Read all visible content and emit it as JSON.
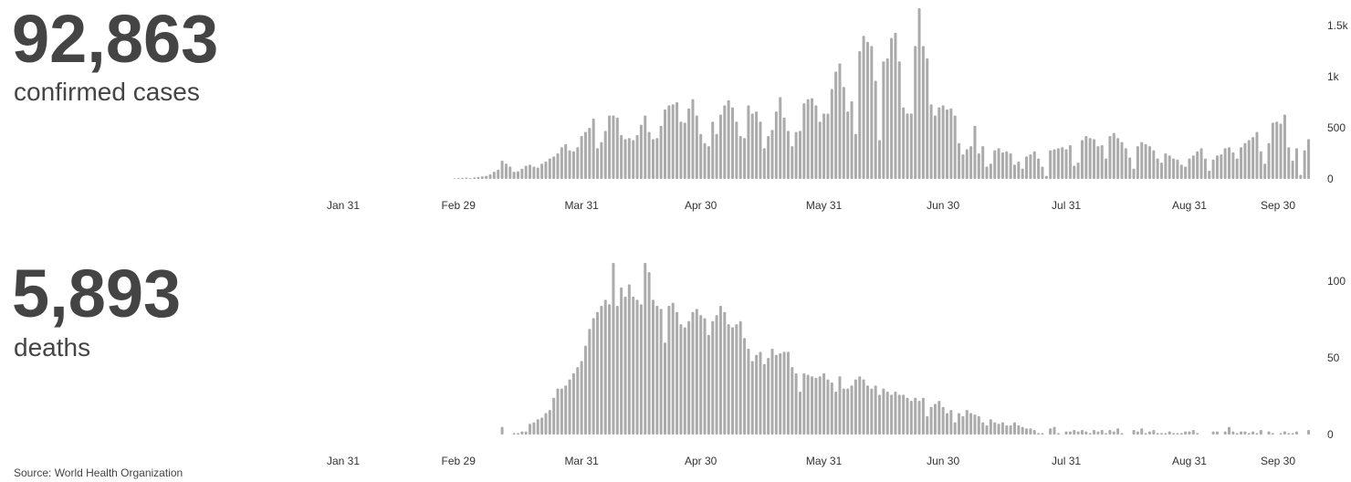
{
  "source": "Source: World Health Organization",
  "chart_data": [
    {
      "type": "bar",
      "headline": "92,863",
      "label": "confirmed cases",
      "color": "#ababab",
      "categories": [
        "Jan 31",
        null,
        null,
        null,
        null,
        null,
        null,
        null,
        null,
        null,
        null,
        null,
        null,
        null,
        null,
        null,
        null,
        null,
        null,
        null,
        null,
        null,
        null,
        null,
        null,
        null,
        null,
        null,
        null,
        "Feb 29",
        null,
        null,
        null,
        null,
        null,
        null,
        null,
        null,
        null,
        null,
        null,
        null,
        null,
        null,
        null,
        null,
        null,
        null,
        null,
        null,
        null,
        null,
        null,
        null,
        null,
        null,
        null,
        null,
        null,
        null,
        "Mar 31",
        null,
        null,
        null,
        null,
        null,
        null,
        null,
        null,
        null,
        null,
        null,
        null,
        null,
        null,
        null,
        null,
        null,
        null,
        null,
        null,
        null,
        null,
        null,
        null,
        null,
        null,
        null,
        null,
        null,
        "Apr 30",
        null,
        null,
        null,
        null,
        null,
        null,
        null,
        null,
        null,
        null,
        null,
        null,
        null,
        null,
        null,
        null,
        null,
        null,
        null,
        null,
        null,
        null,
        null,
        null,
        null,
        null,
        null,
        null,
        null,
        null,
        "May 31",
        null,
        null,
        null,
        null,
        null,
        null,
        null,
        null,
        null,
        null,
        null,
        null,
        null,
        null,
        null,
        null,
        null,
        null,
        null,
        null,
        null,
        null,
        null,
        null,
        null,
        null,
        null,
        null,
        null,
        "Jun 30",
        null,
        null,
        null,
        null,
        null,
        null,
        null,
        null,
        null,
        null,
        null,
        null,
        null,
        null,
        null,
        null,
        null,
        null,
        null,
        null,
        null,
        null,
        null,
        null,
        null,
        null,
        null,
        null,
        null,
        null,
        "Jul 31",
        null,
        null,
        null,
        null,
        null,
        null,
        null,
        null,
        null,
        null,
        null,
        null,
        null,
        null,
        null,
        null,
        null,
        null,
        null,
        null,
        null,
        null,
        null,
        null,
        null,
        null,
        null,
        null,
        null,
        null,
        "Aug 31",
        null,
        null,
        null,
        null,
        null,
        null,
        null,
        null,
        null,
        null,
        null,
        null,
        null,
        null,
        null,
        null,
        null,
        null,
        null,
        null,
        null,
        null,
        null,
        null,
        null,
        null,
        null,
        null,
        null,
        "Sep 30"
      ],
      "values": [
        0,
        0,
        0,
        0,
        0,
        0,
        0,
        0,
        0,
        0,
        0,
        0,
        0,
        0,
        0,
        0,
        0,
        0,
        0,
        0,
        0,
        0,
        0,
        0,
        0,
        0,
        0,
        0,
        5,
        8,
        10,
        12,
        8,
        15,
        20,
        25,
        30,
        45,
        70,
        90,
        180,
        150,
        120,
        70,
        75,
        100,
        130,
        140,
        120,
        110,
        150,
        170,
        200,
        220,
        250,
        310,
        340,
        280,
        270,
        310,
        420,
        460,
        500,
        590,
        300,
        360,
        470,
        620,
        620,
        600,
        430,
        390,
        400,
        380,
        430,
        530,
        620,
        460,
        390,
        400,
        520,
        680,
        720,
        730,
        750,
        560,
        550,
        690,
        780,
        620,
        440,
        350,
        320,
        560,
        440,
        630,
        720,
        770,
        700,
        560,
        420,
        400,
        720,
        640,
        660,
        560,
        300,
        420,
        480,
        660,
        800,
        600,
        470,
        320,
        460,
        470,
        740,
        780,
        790,
        720,
        560,
        640,
        640,
        880,
        1050,
        1130,
        900,
        660,
        760,
        440,
        1250,
        1400,
        1340,
        1300,
        960,
        380,
        1150,
        1180,
        1380,
        1430,
        1150,
        700,
        640,
        640,
        1300,
        1670,
        1300,
        1180,
        730,
        620,
        700,
        720,
        680,
        690,
        620,
        350,
        240,
        290,
        320,
        520,
        250,
        320,
        120,
        150,
        280,
        300,
        260,
        270,
        250,
        140,
        170,
        100,
        220,
        240,
        270,
        200,
        120,
        30,
        280,
        290,
        300,
        310,
        290,
        330,
        130,
        160,
        380,
        420,
        400,
        390,
        320,
        330,
        200,
        420,
        450,
        400,
        360,
        300,
        210,
        100,
        320,
        360,
        340,
        320,
        280,
        200,
        160,
        250,
        230,
        200,
        190,
        140,
        120,
        200,
        230,
        270,
        300,
        200,
        80,
        190,
        230,
        240,
        300,
        310,
        260,
        200,
        310,
        350,
        380,
        410,
        460,
        270,
        150,
        350,
        550,
        560,
        540,
        630,
        310,
        180,
        300,
        40,
        280,
        390
      ],
      "ylim": [
        0,
        1700
      ],
      "yticks": [
        0,
        500,
        {
          "value": 1000,
          "label": "1k"
        },
        {
          "value": 1500,
          "label": "1.5k"
        }
      ]
    },
    {
      "type": "bar",
      "headline": "5,893",
      "label": "deaths",
      "color": "#ababab",
      "categories": [
        "Jan 31",
        null,
        null,
        null,
        null,
        null,
        null,
        null,
        null,
        null,
        null,
        null,
        null,
        null,
        null,
        null,
        null,
        null,
        null,
        null,
        null,
        null,
        null,
        null,
        null,
        null,
        null,
        null,
        null,
        "Feb 29",
        null,
        null,
        null,
        null,
        null,
        null,
        null,
        null,
        null,
        null,
        null,
        null,
        null,
        null,
        null,
        null,
        null,
        null,
        null,
        null,
        null,
        null,
        null,
        null,
        null,
        null,
        null,
        null,
        null,
        null,
        "Mar 31",
        null,
        null,
        null,
        null,
        null,
        null,
        null,
        null,
        null,
        null,
        null,
        null,
        null,
        null,
        null,
        null,
        null,
        null,
        null,
        null,
        null,
        null,
        null,
        null,
        null,
        null,
        null,
        null,
        null,
        "Apr 30",
        null,
        null,
        null,
        null,
        null,
        null,
        null,
        null,
        null,
        null,
        null,
        null,
        null,
        null,
        null,
        null,
        null,
        null,
        null,
        null,
        null,
        null,
        null,
        null,
        null,
        null,
        null,
        null,
        null,
        null,
        "May 31",
        null,
        null,
        null,
        null,
        null,
        null,
        null,
        null,
        null,
        null,
        null,
        null,
        null,
        null,
        null,
        null,
        null,
        null,
        null,
        null,
        null,
        null,
        null,
        null,
        null,
        null,
        null,
        null,
        null,
        "Jun 30",
        null,
        null,
        null,
        null,
        null,
        null,
        null,
        null,
        null,
        null,
        null,
        null,
        null,
        null,
        null,
        null,
        null,
        null,
        null,
        null,
        null,
        null,
        null,
        null,
        null,
        null,
        null,
        null,
        null,
        null,
        "Jul 31",
        null,
        null,
        null,
        null,
        null,
        null,
        null,
        null,
        null,
        null,
        null,
        null,
        null,
        null,
        null,
        null,
        null,
        null,
        null,
        null,
        null,
        null,
        null,
        null,
        null,
        null,
        null,
        null,
        null,
        null,
        "Aug 31",
        null,
        null,
        null,
        null,
        null,
        null,
        null,
        null,
        null,
        null,
        null,
        null,
        null,
        null,
        null,
        null,
        null,
        null,
        null,
        null,
        null,
        null,
        null,
        null,
        null,
        null,
        null,
        null,
        null,
        "Sep 30"
      ],
      "values": [
        0,
        0,
        0,
        0,
        0,
        0,
        0,
        0,
        0,
        0,
        0,
        0,
        0,
        0,
        0,
        0,
        0,
        0,
        0,
        0,
        0,
        0,
        0,
        0,
        0,
        0,
        0,
        0,
        0,
        0,
        0,
        0,
        0,
        0,
        0,
        0,
        0,
        0,
        0,
        0,
        5,
        0,
        0,
        1,
        1,
        2,
        2,
        7,
        8,
        10,
        11,
        14,
        16,
        24,
        30,
        30,
        32,
        36,
        40,
        44,
        48,
        58,
        69,
        76,
        80,
        84,
        88,
        85,
        112,
        84,
        96,
        90,
        98,
        90,
        88,
        85,
        112,
        106,
        88,
        84,
        82,
        60,
        84,
        86,
        80,
        72,
        70,
        74,
        80,
        82,
        78,
        76,
        65,
        74,
        78,
        84,
        80,
        72,
        70,
        72,
        74,
        63,
        56,
        48,
        52,
        54,
        46,
        50,
        56,
        52,
        53,
        54,
        54,
        44,
        40,
        28,
        40,
        39,
        38,
        37,
        38,
        40,
        36,
        34,
        28,
        38,
        30,
        30,
        32,
        36,
        38,
        36,
        32,
        30,
        32,
        26,
        30,
        28,
        26,
        28,
        26,
        26,
        24,
        22,
        24,
        22,
        24,
        12,
        18,
        20,
        22,
        18,
        14,
        16,
        8,
        14,
        12,
        16,
        14,
        13,
        12,
        8,
        6,
        10,
        8,
        7,
        8,
        6,
        6,
        8,
        6,
        5,
        4,
        4,
        3,
        1,
        1,
        0,
        4,
        5,
        1,
        0,
        2,
        2,
        3,
        2,
        3,
        2,
        1,
        3,
        2,
        3,
        1,
        3,
        2,
        4,
        1,
        0,
        0,
        3,
        2,
        4,
        1,
        2,
        3,
        1,
        1,
        1,
        2,
        1,
        1,
        1,
        2,
        2,
        3,
        1,
        0,
        0,
        0,
        2,
        2,
        0,
        2,
        5,
        2,
        1,
        2,
        2,
        1,
        2,
        1,
        3,
        0,
        2,
        1,
        0,
        1,
        2,
        1,
        1,
        2,
        0,
        0,
        3
      ],
      "ylim": [
        0,
        115
      ],
      "yticks": [
        0,
        50,
        100
      ]
    }
  ]
}
